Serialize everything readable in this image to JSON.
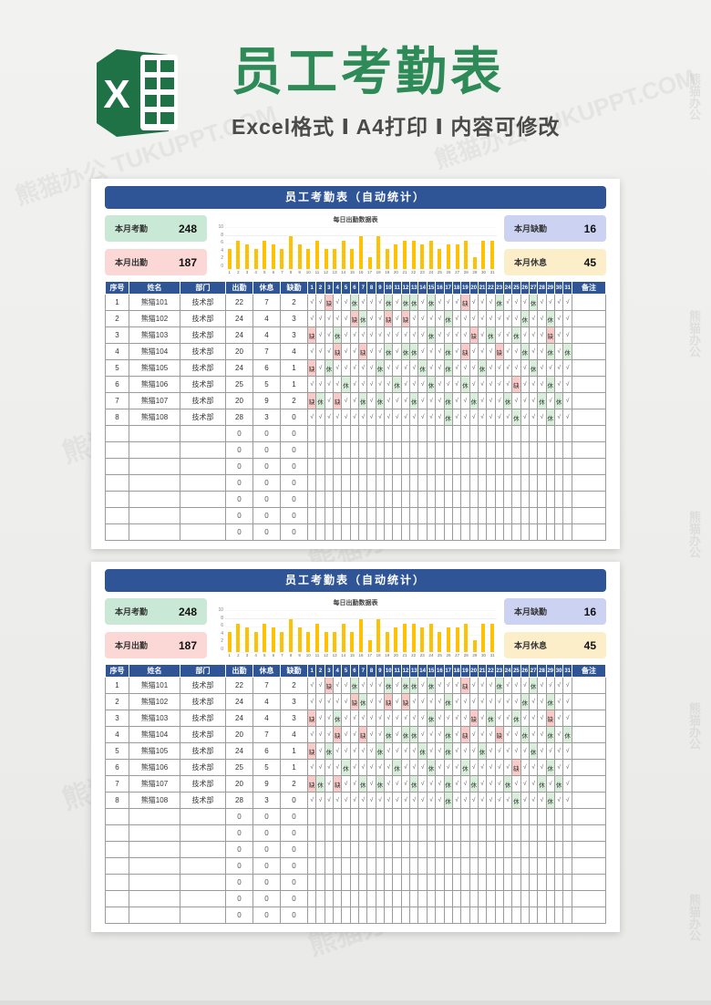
{
  "watermark": {
    "text": "熊猫办公 TUKUPPT.COM",
    "brand": "熊猫办公"
  },
  "header": {
    "logo": "excel-logo",
    "title": "员工考勤表",
    "subtitle": "Excel格式 Ⅰ A4打印 Ⅰ 内容可修改"
  },
  "sheet": {
    "title": "员工考勤表（自动统计）",
    "summary": [
      {
        "label": "本月考勤",
        "value": "248",
        "bg": "#c9e8d5"
      },
      {
        "label": "本月出勤",
        "value": "187",
        "bg": "#fbd8d6"
      },
      {
        "label": "本月缺勤",
        "value": "16",
        "bg": "#ccd2f2"
      },
      {
        "label": "本月休息",
        "value": "45",
        "bg": "#fdeeca"
      }
    ],
    "table": {
      "headers": [
        "序号",
        "姓名",
        "部门",
        "出勤",
        "休息",
        "缺勤"
      ],
      "days": [
        1,
        2,
        3,
        4,
        5,
        6,
        7,
        8,
        9,
        10,
        11,
        12,
        13,
        14,
        15,
        16,
        17,
        18,
        19,
        20,
        21,
        22,
        23,
        24,
        25,
        26,
        27,
        28,
        29,
        30,
        31
      ],
      "remark_header": "备注",
      "zero": "0",
      "empty_rows": 7,
      "mark_colors": {
        "休": "#d9efdc",
        "缺": "#f9cbc8"
      },
      "rows": [
        {
          "sn": "1",
          "name": "熊猫101",
          "dept": "技术部",
          "attend": "22",
          "rest": "7",
          "absent": "2",
          "days": "√√缺√√休√√√休√休休√休√√√缺√√√休√√√休√√√√"
        },
        {
          "sn": "2",
          "name": "熊猫102",
          "dept": "技术部",
          "attend": "24",
          "rest": "4",
          "absent": "3",
          "days": "√√√√√缺休√√缺√缺√√√√休√√√√√√√√休√√休√√"
        },
        {
          "sn": "3",
          "name": "熊猫103",
          "dept": "技术部",
          "attend": "24",
          "rest": "4",
          "absent": "3",
          "days": "缺√√休√√√√√√√√√√休√√√√缺√休√√休√√√缺√√"
        },
        {
          "sn": "4",
          "name": "熊猫104",
          "dept": "技术部",
          "attend": "20",
          "rest": "7",
          "absent": "4",
          "days": "√√√缺√√缺√√休√休休√√√休√缺√√√缺√√休√√休√休"
        },
        {
          "sn": "5",
          "name": "熊猫105",
          "dept": "技术部",
          "attend": "24",
          "rest": "6",
          "absent": "1",
          "days": "缺√休√√√√√休√√√√休√√休√√√休√√√√√休√√√√"
        },
        {
          "sn": "6",
          "name": "熊猫106",
          "dept": "技术部",
          "attend": "25",
          "rest": "5",
          "absent": "1",
          "days": "√√√√休√√√√√休√√√休√√√休√√√√√缺√√√休√√"
        },
        {
          "sn": "7",
          "name": "熊猫107",
          "dept": "技术部",
          "attend": "20",
          "rest": "9",
          "absent": "2",
          "days": "缺休√缺√√休√休√√√休√√√休√√休√√√休√√√休√休√"
        },
        {
          "sn": "8",
          "name": "熊猫108",
          "dept": "技术部",
          "attend": "28",
          "rest": "3",
          "absent": "0",
          "days": "√√√√√√√√√√√√√√√√休√√√√√√√休√√√休√√"
        }
      ]
    }
  },
  "chart_data": {
    "type": "bar",
    "title": "每日出勤数据表",
    "x": [
      1,
      2,
      3,
      4,
      5,
      6,
      7,
      8,
      9,
      10,
      11,
      12,
      13,
      14,
      15,
      16,
      17,
      18,
      19,
      20,
      21,
      22,
      23,
      24,
      25,
      26,
      27,
      28,
      29,
      30,
      31
    ],
    "values": [
      5,
      7,
      6,
      5,
      7,
      6,
      5,
      8,
      6,
      5,
      7,
      5,
      5,
      7,
      5,
      8,
      3,
      8,
      5,
      6,
      7,
      7,
      6,
      7,
      5,
      6,
      6,
      7,
      3,
      7,
      7
    ],
    "xlabel": "",
    "ylabel": "",
    "ylim": [
      0,
      10
    ],
    "yticks": [
      0,
      2,
      4,
      6,
      8,
      10
    ],
    "bar_color": "#ffc104",
    "grid": true,
    "legend": "none"
  },
  "colors": {
    "accent_blue": "#2f5597",
    "title_green": "#2e8b57",
    "logo_green": "#1f7246",
    "bar_yellow": "#ffc104",
    "rest_green": "#d9efdc",
    "absent_pink": "#f9cbc8"
  }
}
